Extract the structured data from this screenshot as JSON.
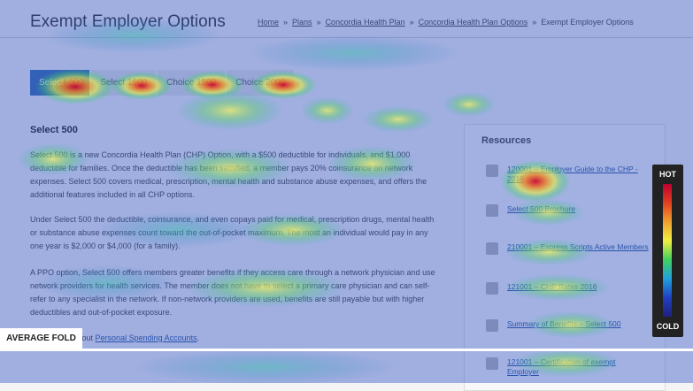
{
  "header": {
    "title": "Exempt Employer Options",
    "breadcrumb": [
      "Home",
      "Plans",
      "Concordia Health Plan",
      "Concordia Health Plan Options",
      "Exempt Employer Options"
    ]
  },
  "tabs": [
    "Select 500",
    "Select 1500",
    "Choice 1500",
    "Choice 2000"
  ],
  "content": {
    "heading": "Select 500",
    "paragraphs": [
      "Select 500 is a new Concordia Health Plan (CHP) Option, with a $500 deductible for individuals, and $1,000 deductible for families. Once the deductible has been satisfied, a member pays 20% coinsurance on network expenses. Select 500 covers medical, prescription, mental health and substance abuse expenses, and offers the additional features included in all CHP options.",
      "Under Select 500 the deductible, coinsurance, and even copays paid for medical, prescription drugs, mental health or substance abuse expenses count toward the out-of-pocket maximum. The most an individual would pay in any one year is $2,000 or $4,000 (for a family).",
      "A PPO option, Select 500 offers members greater benefits if they access care through a network physician and use network providers for health services. The member does not have to select a primary care physician and can self-refer to any specialist in the network. If non-network providers are used, benefits are still payable but with higher deductibles and out-of-pocket exposure."
    ],
    "more": {
      "text": "Learn more about ",
      "link": "Personal Spending Accounts",
      "end": "."
    }
  },
  "resources": {
    "title": "Resources",
    "items": [
      "120001 – Employer Guide to the CHP - 2016",
      "Select 500 Brochure",
      "210001 – Express Scripts Active Members",
      "121001 – CHP Rates 2016",
      "Summary of Benefits – Select 500",
      "121001 – Certification of exempt Employer"
    ]
  },
  "overlay": {
    "fold": "AVERAGE FOLD",
    "legend_hot": "HOT",
    "legend_cold": "COLD"
  }
}
